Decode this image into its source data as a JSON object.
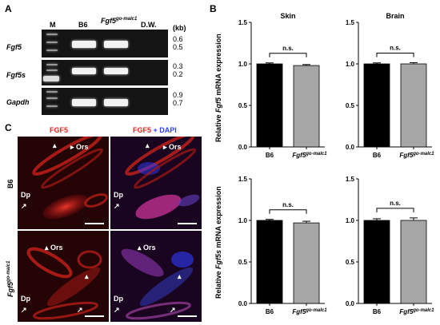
{
  "panels": {
    "A": "A",
    "B": "B",
    "C": "C"
  },
  "gel": {
    "lanes": {
      "M": "M",
      "B6": "B6",
      "mutant_base": "Fgf5",
      "mutant_sup": "go-malc1",
      "DW": "D.W."
    },
    "kb_unit": "(kb)",
    "rows": [
      {
        "gene": "Fgf5",
        "kb_top": "0.6",
        "kb_bottom": "0.5"
      },
      {
        "gene": "Fgf5s",
        "kb_top": "0.3",
        "kb_bottom": "0.2"
      },
      {
        "gene": "Gapdh",
        "kb_top": "0.9",
        "kb_bottom": "0.7"
      }
    ]
  },
  "fluorescence": {
    "title_fgf5": "FGF5",
    "title_merge_fgf5": "FGF5",
    "title_merge_plus": " + ",
    "title_merge_dapi": "DAPI",
    "row_b6": "B6",
    "row_mut_base": "Fgf5",
    "row_mut_sup": "go-malc1",
    "label_ors": "Ors",
    "label_dp": "Dp",
    "colors": {
      "fgf5": "#e8231f",
      "dapi": "#2e3cff"
    }
  },
  "chart_data": [
    {
      "type": "bar",
      "title": "Skin",
      "categories": [
        "B6",
        "Fgf5 go-malc1"
      ],
      "values": [
        1.0,
        0.98
      ],
      "errors": [
        0.012,
        0.012
      ],
      "ylim": [
        0,
        1.5
      ],
      "yticks": [
        "0.0",
        "0.5",
        "1.0",
        "1.5"
      ],
      "significance": "n.s.",
      "colors": [
        "#000000",
        "#a6a6a6"
      ]
    },
    {
      "type": "bar",
      "title": "Brain",
      "categories": [
        "B6",
        "Fgf5 go-malc1"
      ],
      "values": [
        1.0,
        1.0
      ],
      "errors": [
        0.012,
        0.015
      ],
      "ylim": [
        0,
        1.5
      ],
      "yticks": [
        "0.0",
        "0.5",
        "1.0",
        "1.5"
      ],
      "significance": "n.s.",
      "colors": [
        "#000000",
        "#a6a6a6"
      ]
    },
    {
      "type": "bar",
      "title": "",
      "categories": [
        "B6",
        "Fgf5 go-malc1"
      ],
      "values": [
        1.0,
        0.97
      ],
      "errors": [
        0.012,
        0.02
      ],
      "ylim": [
        0,
        1.5
      ],
      "yticks": [
        "0.0",
        "0.5",
        "1.0",
        "1.5"
      ],
      "significance": "n.s.",
      "colors": [
        "#000000",
        "#a6a6a6"
      ]
    },
    {
      "type": "bar",
      "title": "",
      "categories": [
        "B6",
        "Fgf5 go-malc1"
      ],
      "values": [
        1.0,
        1.0
      ],
      "errors": [
        0.02,
        0.03
      ],
      "ylim": [
        0,
        1.5
      ],
      "yticks": [
        "0.0",
        "0.5",
        "1.0",
        "1.5"
      ],
      "significance": "n.s.",
      "colors": [
        "#000000",
        "#a6a6a6"
      ]
    }
  ],
  "ylabels": {
    "top": {
      "pre": "Relative ",
      "gene": "Fgf5",
      "post": " mRNA expression"
    },
    "bottom": {
      "pre": "Relative ",
      "gene": "Fgf5s",
      "post": " mRNA expression"
    }
  },
  "xcat": {
    "b6": "B6",
    "mut_base": "Fgf5",
    "mut_sup": "go-malc1"
  }
}
